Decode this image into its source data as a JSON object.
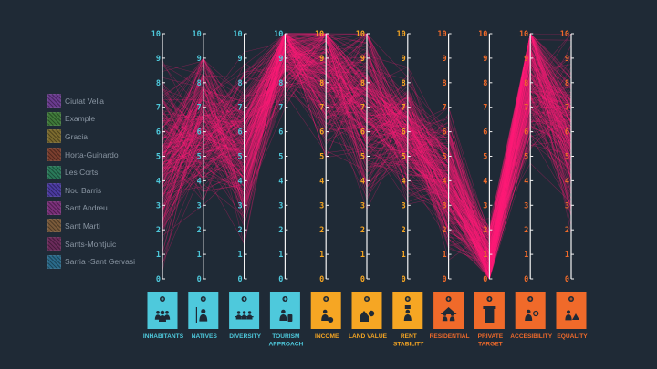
{
  "legend": [
    {
      "label": "Ciutat Vella",
      "color": "#6a3b8f"
    },
    {
      "label": "Example",
      "color": "#3f7a3a"
    },
    {
      "label": "Gracia",
      "color": "#7b6a2e"
    },
    {
      "label": "Horta-Guinardo",
      "color": "#7a3e2e"
    },
    {
      "label": "Les Corts",
      "color": "#2a7a5a"
    },
    {
      "label": "Nou Barris",
      "color": "#4a3aa0"
    },
    {
      "label": "Sant Andreu",
      "color": "#7a2f7a"
    },
    {
      "label": "Sant Marti",
      "color": "#7a5a3a"
    },
    {
      "label": "Sants-Montjuic",
      "color": "#6a2a5a"
    },
    {
      "label": "Sarria -Sant Gervasi",
      "color": "#2a6a8a"
    }
  ],
  "colors": {
    "background": "#1f2a36",
    "cyan": "#4ec9dc",
    "yellow": "#f6a623",
    "orange": "#f06a2a",
    "line": "#ff1e78",
    "axis": "#f3f3f3"
  },
  "chart_data": {
    "type": "parallel-coordinates",
    "ylim": [
      0,
      10
    ],
    "ticks": [
      "0",
      "1",
      "2",
      "3",
      "4",
      "5",
      "6",
      "7",
      "8",
      "9",
      "10"
    ],
    "axes": [
      {
        "label": [
          "INHABITANTS"
        ],
        "group": "cyan",
        "icon": "people-group-icon",
        "range": [
          0,
          10
        ],
        "center": 5
      },
      {
        "label": [
          "NATIVES"
        ],
        "group": "cyan",
        "icon": "native-person-icon",
        "range": [
          1,
          9
        ],
        "center": 6.3
      },
      {
        "label": [
          "DIVERSITY"
        ],
        "group": "cyan",
        "icon": "diverse-group-icon",
        "range": [
          1,
          10
        ],
        "center": 5.5
      },
      {
        "label": [
          "TOURISM",
          "APPROACH"
        ],
        "group": "cyan",
        "icon": "tourist-luggage-icon",
        "range": [
          5,
          10
        ],
        "center": 9.3
      },
      {
        "label": [
          "INCOME"
        ],
        "group": "yellow",
        "icon": "income-person-icon",
        "range": [
          2,
          10
        ],
        "center": 8.5
      },
      {
        "label": [
          "LAND VALUE"
        ],
        "group": "yellow",
        "icon": "house-value-icon",
        "range": [
          1,
          10
        ],
        "center": 7
      },
      {
        "label": [
          "RENT",
          "STABILITY"
        ],
        "group": "yellow",
        "icon": "rent-stability-icon",
        "range": [
          3,
          9
        ],
        "center": 5.9
      },
      {
        "label": [
          "RESIDENTIAL"
        ],
        "group": "orange",
        "icon": "residential-group-icon",
        "range": [
          0,
          7
        ],
        "center": 4
      },
      {
        "label": [
          "PRIVATE",
          "TARGET"
        ],
        "group": "orange",
        "icon": "private-building-icon",
        "range": [
          0,
          4
        ],
        "center": 0.7
      },
      {
        "label": [
          "ACCESIBILITY"
        ],
        "group": "orange",
        "icon": "accessibility-worker-icon",
        "range": [
          2,
          10
        ],
        "center": 8.5
      },
      {
        "label": [
          "EQUALITY"
        ],
        "group": "orange",
        "icon": "equality-scale-icon",
        "range": [
          1,
          10
        ],
        "center": 6
      }
    ],
    "series_count": 220,
    "series_color": "#ff1e78"
  }
}
